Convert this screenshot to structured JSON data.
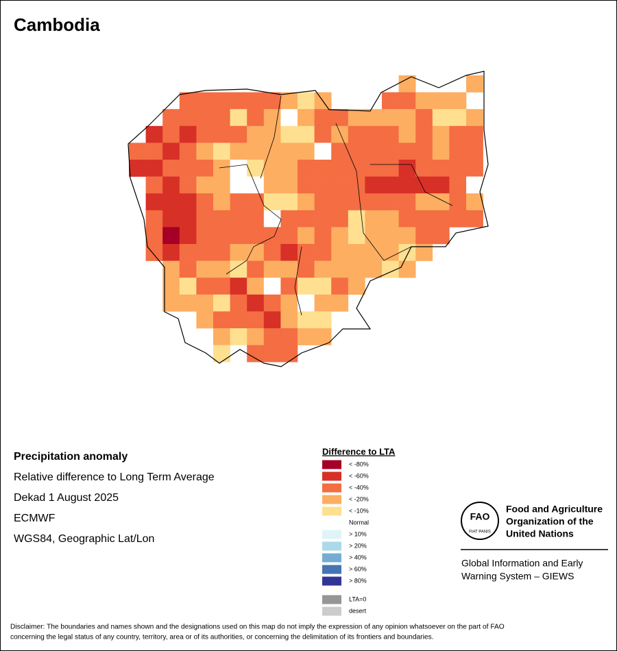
{
  "header": {
    "title": "Cambodia"
  },
  "info": {
    "heading": "Precipitation anomaly",
    "lines": [
      "Relative difference to Long Term Average",
      "Dekad 1 August 2025",
      "ECMWF",
      "WGS84, Geographic Lat/Lon"
    ]
  },
  "legend": {
    "title": "Difference to LTA",
    "items": [
      {
        "label": "< -80%",
        "color": "#a50026"
      },
      {
        "label": "< -60%",
        "color": "#d73027"
      },
      {
        "label": "< -40%",
        "color": "#f46d43"
      },
      {
        "label": "< -20%",
        "color": "#fdae61"
      },
      {
        "label": "< -10%",
        "color": "#fee090"
      },
      {
        "label": "Normal",
        "color": "#ffffff"
      },
      {
        "label": "> 10%",
        "color": "#e0f3f8"
      },
      {
        "label": "> 20%",
        "color": "#abd9e9"
      },
      {
        "label": "> 40%",
        "color": "#74add1"
      },
      {
        "label": "> 60%",
        "color": "#4575b4"
      },
      {
        "label": "> 80%",
        "color": "#313695"
      },
      {
        "label": "LTA=0",
        "color": "#969696"
      },
      {
        "label": "desert",
        "color": "#cccccc"
      }
    ]
  },
  "map": {
    "cells": [
      [
        null,
        null,
        null,
        null,
        null,
        null,
        null,
        null,
        null,
        null,
        null,
        null,
        null,
        null,
        null,
        null,
        3,
        null,
        null,
        5,
        3
      ],
      [
        null,
        null,
        null,
        2,
        2,
        2,
        2,
        2,
        2,
        3,
        4,
        3,
        null,
        null,
        null,
        2,
        2,
        3,
        3,
        3,
        null
      ],
      [
        null,
        null,
        2,
        2,
        2,
        2,
        4,
        2,
        3,
        5,
        3,
        2,
        2,
        3,
        3,
        3,
        3,
        2,
        4,
        4,
        3
      ],
      [
        null,
        1,
        2,
        1,
        2,
        2,
        2,
        3,
        3,
        4,
        4,
        2,
        3,
        2,
        2,
        2,
        3,
        2,
        3,
        2,
        2
      ],
      [
        2,
        2,
        1,
        2,
        3,
        4,
        3,
        3,
        3,
        3,
        3,
        5,
        2,
        2,
        2,
        2,
        2,
        2,
        3,
        2,
        2
      ],
      [
        1,
        1,
        2,
        2,
        2,
        3,
        5,
        4,
        3,
        3,
        2,
        2,
        2,
        2,
        2,
        2,
        1,
        2,
        2,
        2,
        2
      ],
      [
        null,
        2,
        1,
        2,
        3,
        3,
        5,
        5,
        3,
        3,
        2,
        2,
        2,
        2,
        1,
        1,
        1,
        1,
        1,
        2,
        5
      ],
      [
        null,
        1,
        1,
        1,
        2,
        3,
        2,
        2,
        4,
        4,
        3,
        2,
        2,
        2,
        2,
        2,
        2,
        3,
        3,
        2,
        3
      ],
      [
        null,
        2,
        1,
        1,
        2,
        2,
        2,
        2,
        5,
        2,
        2,
        2,
        2,
        4,
        3,
        3,
        2,
        2,
        2,
        2,
        2
      ],
      [
        null,
        2,
        0,
        1,
        2,
        2,
        2,
        2,
        2,
        2,
        3,
        2,
        3,
        4,
        3,
        3,
        3,
        2,
        2,
        null,
        null
      ],
      [
        null,
        2,
        1,
        2,
        2,
        2,
        3,
        3,
        2,
        1,
        2,
        2,
        3,
        3,
        3,
        3,
        4,
        3,
        null,
        null,
        null
      ],
      [
        null,
        null,
        3,
        2,
        3,
        3,
        4,
        2,
        3,
        3,
        2,
        3,
        3,
        3,
        3,
        4,
        3,
        null,
        null,
        null,
        null
      ],
      [
        null,
        null,
        3,
        4,
        2,
        2,
        1,
        3,
        5,
        2,
        4,
        4,
        2,
        3,
        null,
        null,
        null,
        null,
        null,
        null,
        null
      ],
      [
        null,
        null,
        3,
        3,
        3,
        4,
        2,
        1,
        2,
        3,
        5,
        3,
        3,
        null,
        null,
        null,
        null,
        null,
        null,
        null,
        null
      ],
      [
        null,
        null,
        null,
        null,
        3,
        2,
        2,
        2,
        1,
        3,
        4,
        4,
        null,
        null,
        null,
        null,
        null,
        null,
        null,
        null,
        null
      ],
      [
        null,
        null,
        null,
        null,
        null,
        3,
        4,
        3,
        2,
        2,
        3,
        3,
        null,
        null,
        null,
        null,
        null,
        null,
        null,
        null,
        null
      ],
      [
        null,
        null,
        null,
        null,
        null,
        4,
        null,
        2,
        2,
        2,
        null,
        null,
        null,
        null,
        null,
        null,
        null,
        null,
        null,
        null,
        null
      ]
    ]
  },
  "logo": {
    "letters": "FAO",
    "motto": "FIAT PANIS",
    "org": [
      "Food and Agriculture",
      "Organization of the",
      "United Nations"
    ],
    "system": [
      "Global Information and Early",
      "Warning System – GIEWS"
    ]
  },
  "disclaimer": [
    "Disclaimer: The boundaries and names shown and the designations used on this map do not imply the expression of any opinion whatsoever on the part of FAO",
    "concerning the legal status of any country, territory, area or of its authorities, or concerning the delimitation of its frontiers and boundaries."
  ]
}
